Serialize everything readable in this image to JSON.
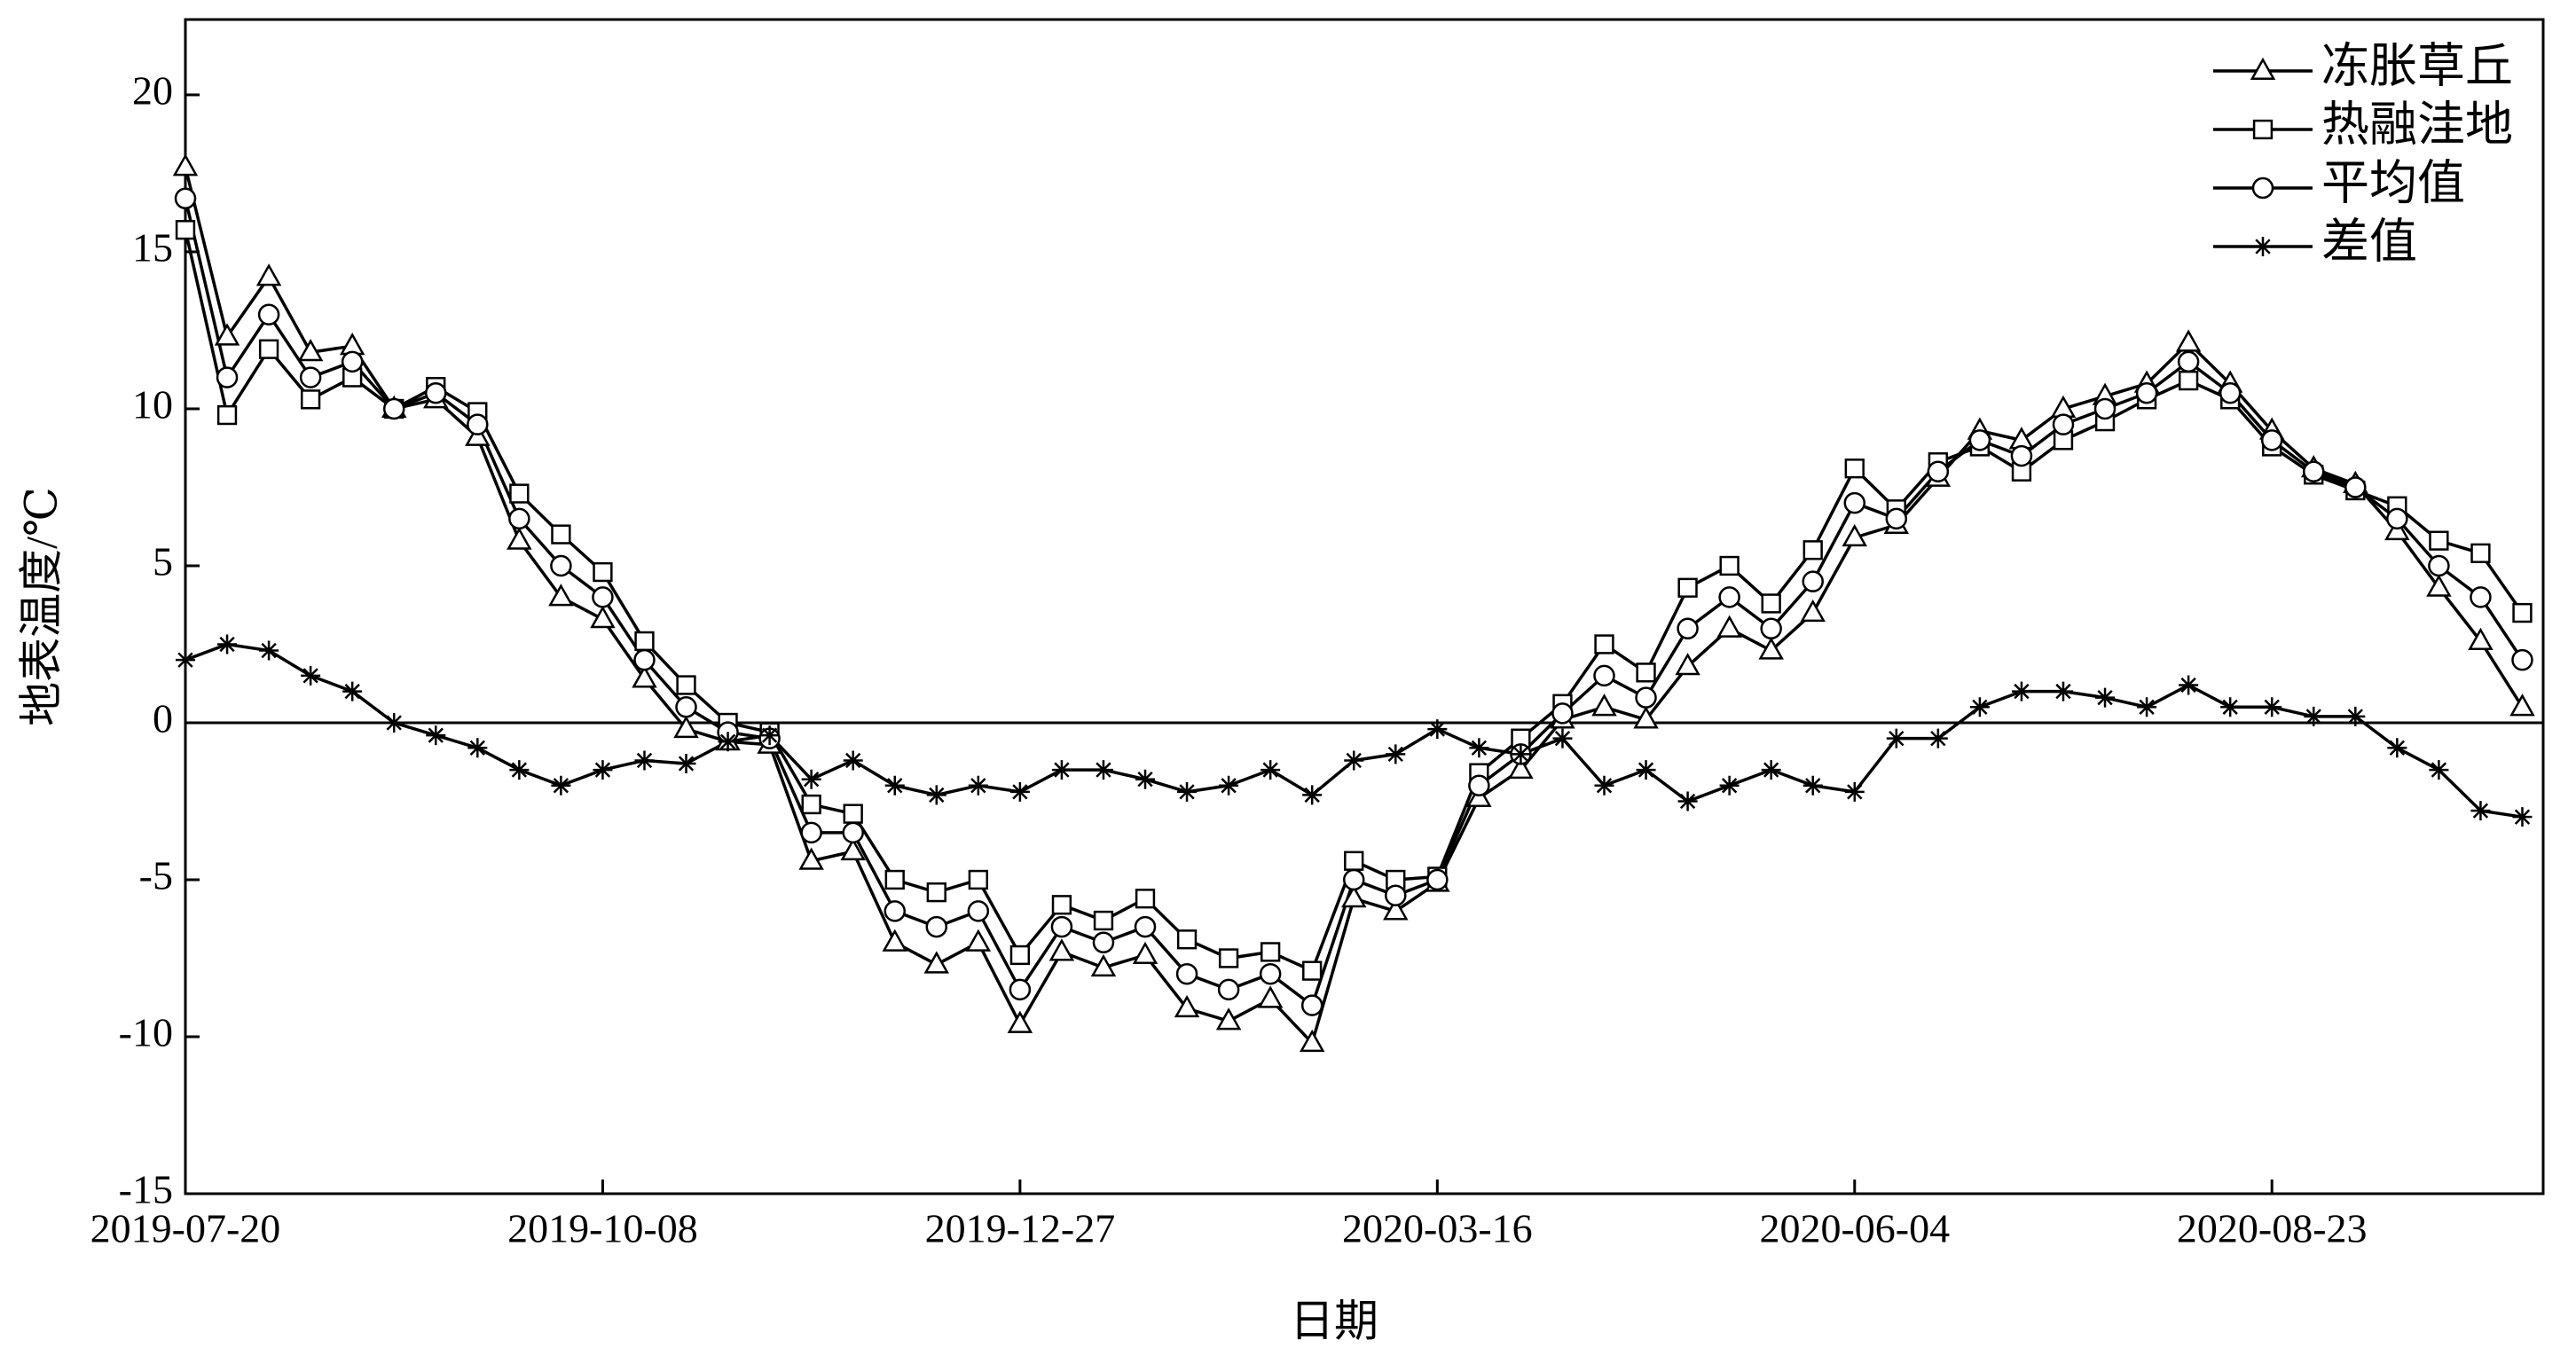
{
  "chart_data": {
    "type": "line",
    "x_label": "日期",
    "y_label": "地表温度/℃",
    "x": [
      "2019-07-20",
      "2019-07-28",
      "2019-08-05",
      "2019-08-13",
      "2019-08-21",
      "2019-08-29",
      "2019-09-06",
      "2019-09-14",
      "2019-09-22",
      "2019-09-30",
      "2019-10-08",
      "2019-10-16",
      "2019-10-24",
      "2019-11-01",
      "2019-11-09",
      "2019-11-17",
      "2019-11-25",
      "2019-12-03",
      "2019-12-11",
      "2019-12-19",
      "2019-12-27",
      "2020-01-04",
      "2020-01-12",
      "2020-01-20",
      "2020-01-28",
      "2020-02-05",
      "2020-02-13",
      "2020-02-21",
      "2020-02-29",
      "2020-03-08",
      "2020-03-16",
      "2020-03-24",
      "2020-04-01",
      "2020-04-09",
      "2020-04-17",
      "2020-04-25",
      "2020-05-03",
      "2020-05-11",
      "2020-05-19",
      "2020-05-27",
      "2020-06-04",
      "2020-06-12",
      "2020-06-20",
      "2020-06-28",
      "2020-07-06",
      "2020-07-14",
      "2020-07-22",
      "2020-07-30",
      "2020-08-07",
      "2020-08-15",
      "2020-08-23",
      "2020-08-31",
      "2020-09-08",
      "2020-09-16",
      "2020-09-24",
      "2020-10-02",
      "2020-10-10"
    ],
    "series": [
      {
        "name": "冻胀草丘",
        "color": "#000000",
        "marker": "triangle",
        "values": [
          17.7,
          12.3,
          14.2,
          11.8,
          12.0,
          10.0,
          10.3,
          9.1,
          5.8,
          4.0,
          3.3,
          1.4,
          -0.2,
          -0.6,
          -0.7,
          -4.4,
          -4.1,
          -7.0,
          -7.7,
          -7.0,
          -9.6,
          -7.3,
          -7.8,
          -7.4,
          -9.1,
          -9.5,
          -8.8,
          -10.2,
          -5.6,
          -6.0,
          -5.1,
          -2.4,
          -1.5,
          0.1,
          0.5,
          0.1,
          1.8,
          3.0,
          2.3,
          3.5,
          5.9,
          6.3,
          7.8,
          9.3,
          9.0,
          10.0,
          10.4,
          10.8,
          12.1,
          10.8,
          9.3,
          8.1,
          7.6,
          6.1,
          4.3,
          2.6,
          0.5
        ]
      },
      {
        "name": "热融洼地",
        "color": "#000000",
        "marker": "square",
        "values": [
          15.7,
          9.8,
          11.9,
          10.3,
          11.0,
          10.0,
          10.7,
          9.9,
          7.3,
          6.0,
          4.8,
          2.6,
          1.2,
          0.0,
          -0.3,
          -2.6,
          -2.9,
          -5.0,
          -5.4,
          -5.0,
          -7.4,
          -5.8,
          -6.3,
          -5.6,
          -6.9,
          -7.5,
          -7.3,
          -7.9,
          -4.4,
          -5.0,
          -4.9,
          -1.6,
          -0.5,
          0.6,
          2.5,
          1.6,
          4.3,
          5.0,
          3.8,
          5.5,
          8.1,
          6.8,
          8.3,
          8.8,
          8.0,
          9.0,
          9.6,
          10.3,
          10.9,
          10.3,
          8.8,
          7.9,
          7.4,
          6.9,
          5.8,
          5.4,
          3.5
        ]
      },
      {
        "name": "平均值",
        "color": "#000000",
        "marker": "circle",
        "values": [
          16.7,
          11.0,
          13.0,
          11.0,
          11.5,
          10.0,
          10.5,
          9.5,
          6.5,
          5.0,
          4.0,
          2.0,
          0.5,
          -0.3,
          -0.5,
          -3.5,
          -3.5,
          -6.0,
          -6.5,
          -6.0,
          -8.5,
          -6.5,
          -7.0,
          -6.5,
          -8.0,
          -8.5,
          -8.0,
          -9.0,
          -5.0,
          -5.5,
          -5.0,
          -2.0,
          -1.0,
          0.3,
          1.5,
          0.8,
          3.0,
          4.0,
          3.0,
          4.5,
          7.0,
          6.5,
          8.0,
          9.0,
          8.5,
          9.5,
          10.0,
          10.5,
          11.5,
          10.5,
          9.0,
          8.0,
          7.5,
          6.5,
          5.0,
          4.0,
          2.0
        ]
      },
      {
        "name": "差值",
        "color": "#000000",
        "marker": "asterisk",
        "values": [
          2.0,
          2.5,
          2.3,
          1.5,
          1.0,
          0.0,
          -0.4,
          -0.8,
          -1.5,
          -2.0,
          -1.5,
          -1.2,
          -1.3,
          -0.6,
          -0.4,
          -1.8,
          -1.2,
          -2.0,
          -2.3,
          -2.0,
          -2.2,
          -1.5,
          -1.5,
          -1.8,
          -2.2,
          -2.0,
          -1.5,
          -2.3,
          -1.2,
          -1.0,
          -0.2,
          -0.8,
          -1.0,
          -0.5,
          -2.0,
          -1.5,
          -2.5,
          -2.0,
          -1.5,
          -2.0,
          -2.2,
          -0.5,
          -0.5,
          0.5,
          1.0,
          1.0,
          0.8,
          0.5,
          1.2,
          0.5,
          0.5,
          0.2,
          0.2,
          -0.8,
          -1.5,
          -2.8,
          -3.0
        ]
      }
    ],
    "xlim": [
      "2019-07-20",
      "2020-10-14"
    ],
    "xticks": [
      "2019-07-20",
      "2019-10-08",
      "2019-12-27",
      "2020-03-16",
      "2020-06-04",
      "2020-08-23"
    ],
    "ylim": [
      -15,
      22.4
    ],
    "yticks": [
      -15,
      -10,
      -5,
      0,
      5,
      10,
      15,
      20
    ],
    "zero_line": true,
    "legend": "upper right"
  }
}
